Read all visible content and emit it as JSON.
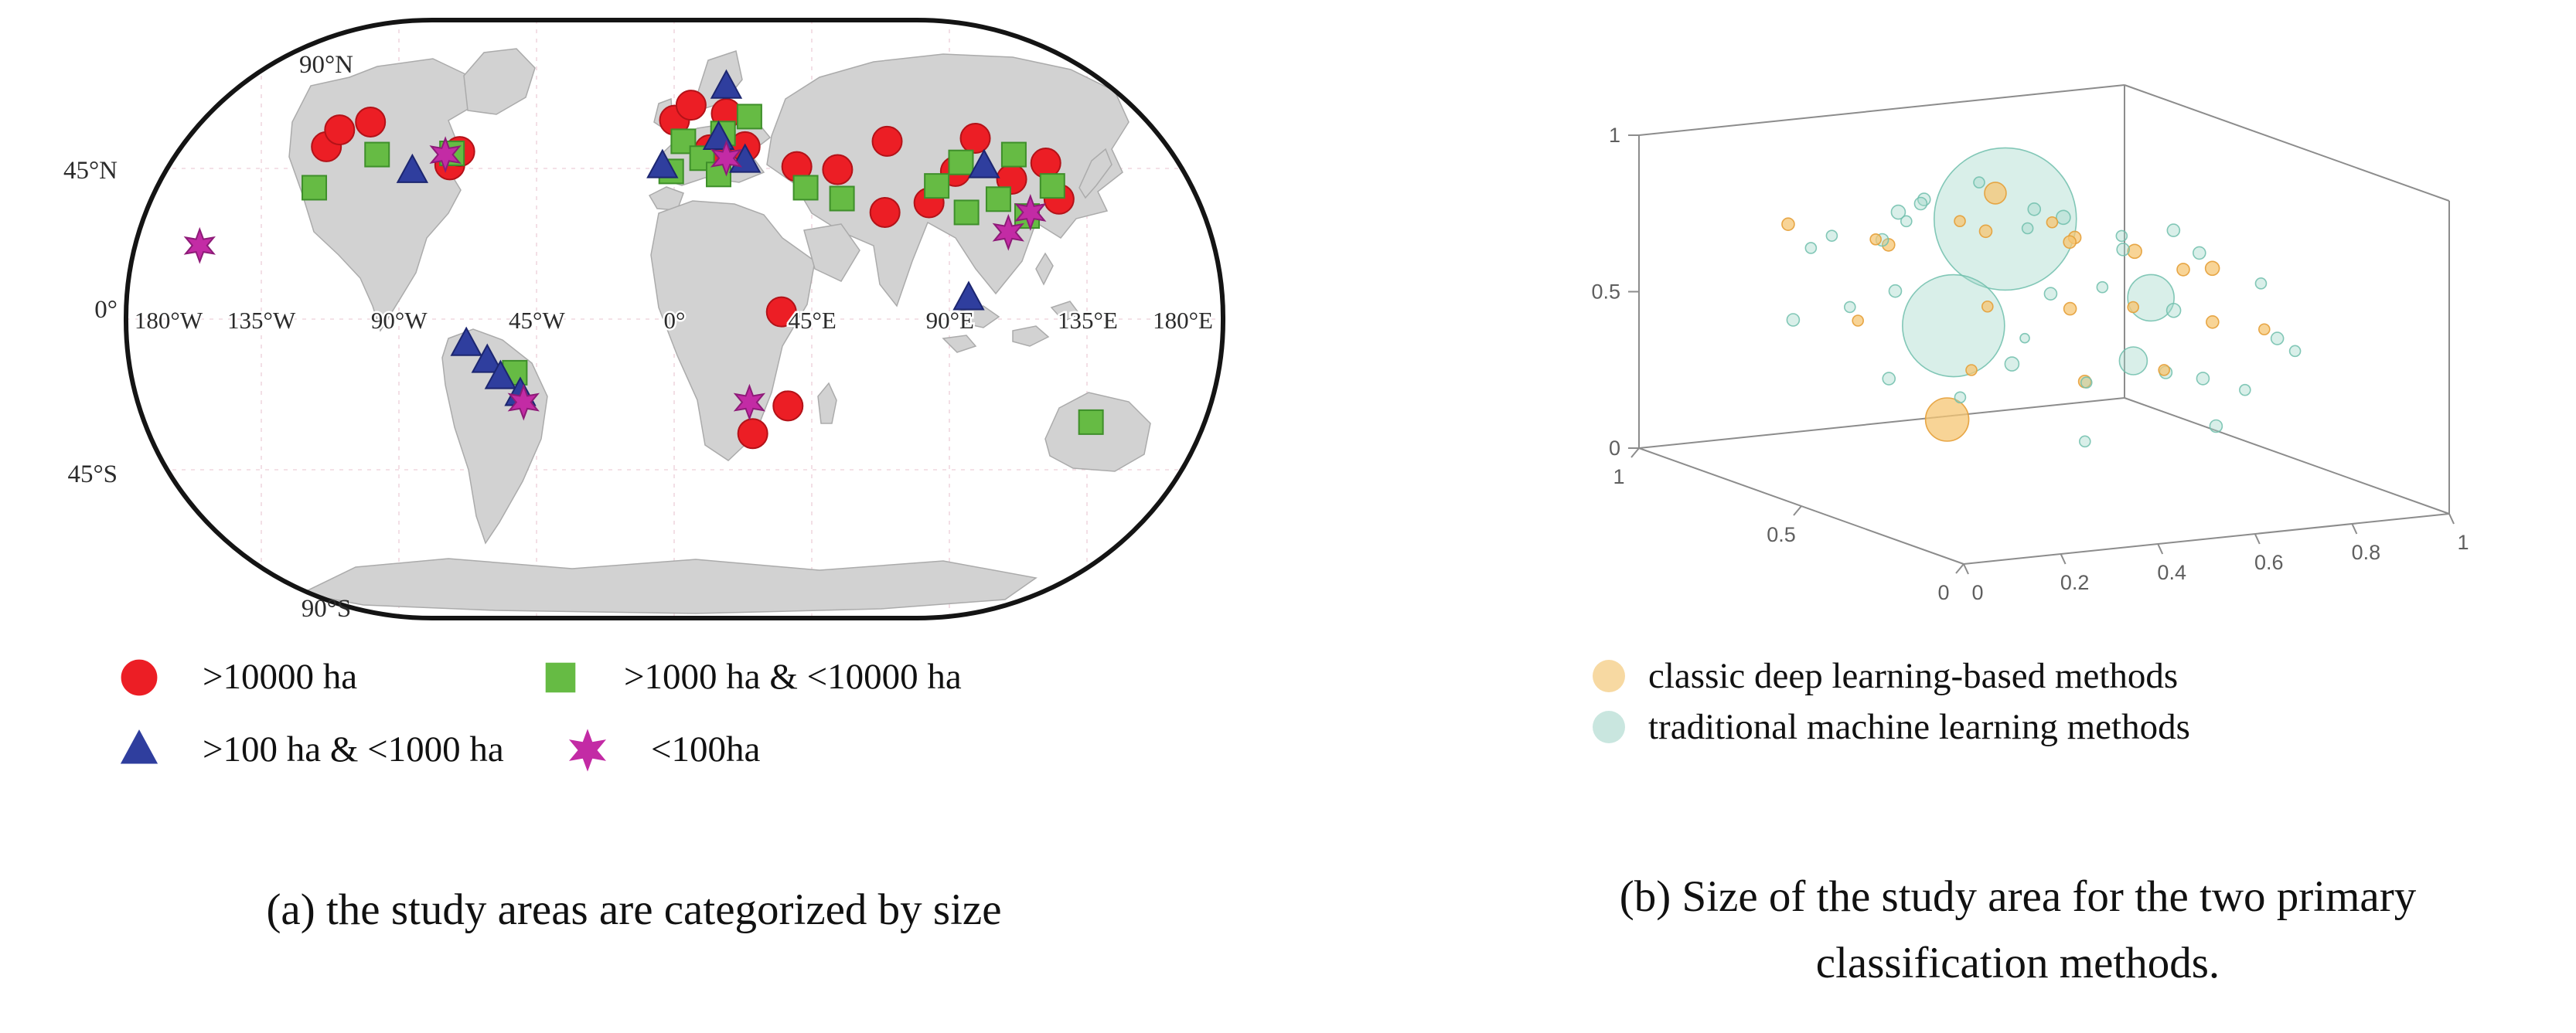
{
  "chart_data": [
    {
      "type": "scatter",
      "subtype": "world-map-study-sites",
      "caption": "(a) the study areas are categorized by size",
      "projection": "robinson-like",
      "coords_are_fractions_of_map": true,
      "lat_tick_labels": [
        "90°N",
        "45°N",
        "0°",
        "45°S",
        "90°S"
      ],
      "lon_tick_labels": [
        "180°W",
        "135°W",
        "90°W",
        "45°W",
        "0°",
        "45°E",
        "90°E",
        "135°E",
        "180°E"
      ],
      "legend": [
        {
          "symbol": "circle",
          "color": "#ec1e25",
          "label": ">10000 ha"
        },
        {
          "symbol": "square",
          "color": "#66bb44",
          "label": ">1000 ha & <10000 ha"
        },
        {
          "symbol": "triangle",
          "color": "#2f3e9e",
          "label": ">100 ha & <1000 ha"
        },
        {
          "symbol": "star",
          "color": "#c32ba5",
          "label": "<100ha"
        }
      ],
      "series": [
        {
          "name": ">10000 ha",
          "marker": "circle",
          "color": "#ec1e25",
          "edge": "#b31218",
          "points": [
            [
              0.184,
              0.214
            ],
            [
              0.196,
              0.186
            ],
            [
              0.224,
              0.173
            ],
            [
              0.296,
              0.244
            ],
            [
              0.305,
              0.222
            ],
            [
              0.5,
              0.17
            ],
            [
              0.515,
              0.145
            ],
            [
              0.547,
              0.159
            ],
            [
              0.532,
              0.219
            ],
            [
              0.564,
              0.214
            ],
            [
              0.611,
              0.247
            ],
            [
              0.648,
              0.252
            ],
            [
              0.693,
              0.205
            ],
            [
              0.773,
              0.2
            ],
            [
              0.731,
              0.307
            ],
            [
              0.755,
              0.255
            ],
            [
              0.806,
              0.268
            ],
            [
              0.837,
              0.241
            ],
            [
              0.849,
              0.301
            ],
            [
              0.691,
              0.323
            ],
            [
              0.597,
              0.488
            ],
            [
              0.603,
              0.644
            ],
            [
              0.571,
              0.69
            ]
          ]
        },
        {
          "name": ">1000 ha & <10000 ha",
          "marker": "square",
          "color": "#66bb44",
          "edge": "#3e8f2a",
          "points": [
            [
              0.173,
              0.282
            ],
            [
              0.23,
              0.227
            ],
            [
              0.298,
              0.225
            ],
            [
              0.497,
              0.255
            ],
            [
              0.508,
              0.205
            ],
            [
              0.525,
              0.233
            ],
            [
              0.544,
              0.192
            ],
            [
              0.568,
              0.164
            ],
            [
              0.619,
              0.282
            ],
            [
              0.652,
              0.3
            ],
            [
              0.738,
              0.279
            ],
            [
              0.76,
              0.24
            ],
            [
              0.765,
              0.323
            ],
            [
              0.794,
              0.301
            ],
            [
              0.808,
              0.227
            ],
            [
              0.82,
              0.329
            ],
            [
              0.843,
              0.279
            ],
            [
              0.878,
              0.671
            ],
            [
              0.355,
              0.589
            ],
            [
              0.54,
              0.26
            ]
          ]
        },
        {
          "name": ">100 ha & <1000 ha",
          "marker": "triangle",
          "color": "#2f3e9e",
          "edge": "#1c2670",
          "points": [
            [
              0.262,
              0.255
            ],
            [
              0.489,
              0.247
            ],
            [
              0.547,
              0.115
            ],
            [
              0.564,
              0.238
            ],
            [
              0.54,
              0.2
            ],
            [
              0.311,
              0.542
            ],
            [
              0.33,
              0.57
            ],
            [
              0.342,
              0.597
            ],
            [
              0.36,
              0.625
            ],
            [
              0.767,
              0.466
            ],
            [
              0.781,
              0.247
            ]
          ]
        },
        {
          "name": "<100ha",
          "marker": "star",
          "color": "#c32ba5",
          "edge": "#8e1b78",
          "points": [
            [
              0.069,
              0.378
            ],
            [
              0.292,
              0.227
            ],
            [
              0.547,
              0.233
            ],
            [
              0.803,
              0.356
            ],
            [
              0.823,
              0.323
            ],
            [
              0.363,
              0.638
            ],
            [
              0.568,
              0.638
            ]
          ]
        }
      ]
    },
    {
      "type": "scatter",
      "subtype": "bubble-3d",
      "caption": "(b) Size of the study area for the two primary classification methods.",
      "caption_lines": [
        "(b) Size of the study area for the two primary",
        "classification methods."
      ],
      "axes": {
        "x_tick_labels": [
          "0",
          "0.2",
          "0.4",
          "0.6",
          "0.8",
          "1"
        ],
        "y_tick_labels": [
          "0",
          "0.5",
          "1"
        ],
        "z_tick_labels": [
          "0",
          "0.5",
          "1"
        ],
        "x_range": [
          0,
          1
        ],
        "y_range": [
          0,
          1
        ],
        "z_range": [
          0,
          1
        ]
      },
      "legend": [
        {
          "color": "#f6d292",
          "label": "classic deep learning-based methods"
        },
        {
          "color": "#bfe2d9",
          "label": "traditional machine learning methods"
        }
      ],
      "series": [
        {
          "name": "classic deep learning-based methods",
          "fill": "rgba(246,198,115,0.75)",
          "edge": "rgba(228,158,55,0.9)",
          "points": [
            [
              0.12,
              0.72,
              0.8,
              8
            ],
            [
              0.22,
              0.6,
              0.78,
              7
            ],
            [
              0.3,
              0.68,
              0.72,
              8
            ],
            [
              0.38,
              0.58,
              0.82,
              7
            ],
            [
              0.46,
              0.62,
              0.76,
              8
            ],
            [
              0.55,
              0.55,
              0.8,
              7
            ],
            [
              0.63,
              0.6,
              0.72,
              8
            ],
            [
              0.72,
              0.55,
              0.68,
              9
            ],
            [
              0.8,
              0.52,
              0.62,
              8
            ],
            [
              0.35,
              0.45,
              0.6,
              7
            ],
            [
              0.5,
              0.42,
              0.58,
              8
            ],
            [
              0.65,
              0.45,
              0.55,
              7
            ],
            [
              0.78,
              0.4,
              0.5,
              8
            ],
            [
              0.88,
              0.55,
              0.6,
              9
            ],
            [
              0.25,
              0.35,
              0.45,
              7
            ],
            [
              0.45,
              0.3,
              0.4,
              8
            ],
            [
              0.6,
              0.28,
              0.42,
              7
            ],
            [
              0.2,
              0.35,
              0.3,
              28
            ],
            [
              0.52,
              0.68,
              0.85,
              14
            ],
            [
              0.9,
              0.42,
              0.45,
              7
            ],
            [
              0.7,
              0.72,
              0.65,
              8
            ],
            [
              0.15,
              0.55,
              0.55,
              7
            ]
          ]
        },
        {
          "name": "traditional machine learning methods",
          "fill": "rgba(160,214,200,0.40)",
          "edge": "rgba(110,190,172,0.85)",
          "points": [
            [
              0.42,
              0.5,
              0.85,
              92
            ],
            [
              0.28,
              0.45,
              0.55,
              66
            ],
            [
              0.72,
              0.5,
              0.55,
              30
            ],
            [
              0.55,
              0.3,
              0.45,
              18
            ],
            [
              0.05,
              0.6,
              0.55,
              8
            ],
            [
              0.1,
              0.5,
              0.62,
              7
            ],
            [
              0.16,
              0.45,
              0.68,
              8
            ],
            [
              0.12,
              0.65,
              0.75,
              7
            ],
            [
              0.2,
              0.55,
              0.8,
              8
            ],
            [
              0.28,
              0.62,
              0.85,
              9
            ],
            [
              0.35,
              0.7,
              0.78,
              7
            ],
            [
              0.42,
              0.75,
              0.82,
              8
            ],
            [
              0.5,
              0.7,
              0.88,
              7
            ],
            [
              0.58,
              0.65,
              0.8,
              8
            ],
            [
              0.66,
              0.68,
              0.75,
              9
            ],
            [
              0.74,
              0.62,
              0.7,
              7
            ],
            [
              0.82,
              0.58,
              0.72,
              8
            ],
            [
              0.9,
              0.62,
              0.62,
              8
            ],
            [
              0.96,
              0.52,
              0.55,
              7
            ],
            [
              0.08,
              0.35,
              0.45,
              8
            ],
            [
              0.18,
              0.28,
              0.4,
              7
            ],
            [
              0.3,
              0.3,
              0.48,
              9
            ],
            [
              0.42,
              0.25,
              0.42,
              7
            ],
            [
              0.55,
              0.2,
              0.45,
              8
            ],
            [
              0.68,
              0.28,
              0.38,
              8
            ],
            [
              0.78,
              0.3,
              0.32,
              7
            ],
            [
              0.88,
              0.35,
              0.45,
              8
            ],
            [
              0.95,
              0.4,
              0.38,
              7
            ],
            [
              0.35,
              0.15,
              0.28,
              7
            ],
            [
              0.6,
              0.12,
              0.3,
              8
            ],
            [
              0.48,
              0.45,
              0.62,
              8
            ],
            [
              0.62,
              0.5,
              0.6,
              7
            ],
            [
              0.25,
              0.78,
              0.72,
              7
            ],
            [
              0.48,
              0.85,
              0.76,
              8
            ],
            [
              0.68,
              0.82,
              0.66,
              7
            ],
            [
              0.85,
              0.78,
              0.58,
              8
            ],
            [
              0.7,
              0.4,
              0.55,
              9
            ],
            [
              0.38,
              0.38,
              0.52,
              6
            ]
          ]
        }
      ]
    }
  ]
}
